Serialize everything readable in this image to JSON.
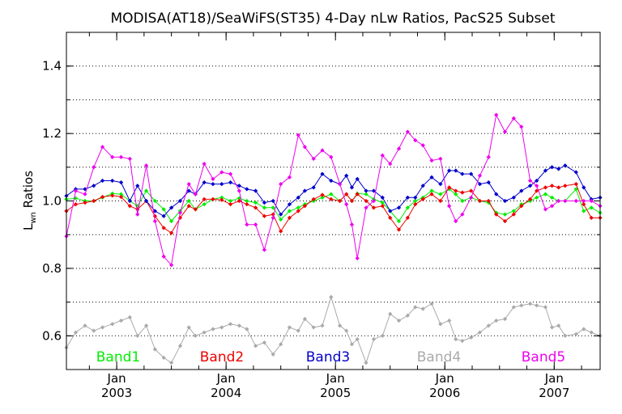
{
  "chart_data": {
    "type": "line",
    "title": "MODISA(AT18)/SeaWiFS(ST35) 4-Day nLw Ratios, PacS25 Subset",
    "ylabel": "L",
    "ylabel_sub": "wn",
    "ylabel_rest": " Ratios",
    "xlabel": "",
    "ylim": [
      0.5,
      1.5
    ],
    "xlim": [
      2002.54,
      2007.42
    ],
    "y_ticks": [
      {
        "value": 0.6,
        "label": "0.6"
      },
      {
        "value": 0.8,
        "label": "0.8"
      },
      {
        "value": 1.0,
        "label": "1.0"
      },
      {
        "value": 1.2,
        "label": "1.2"
      },
      {
        "value": 1.4,
        "label": "1.4"
      }
    ],
    "x_ticks": [
      {
        "value": 2003.0,
        "month": "Jan",
        "year": "2003"
      },
      {
        "value": 2004.0,
        "month": "Jan",
        "year": "2004"
      },
      {
        "value": 2005.0,
        "month": "Jan",
        "year": "2005"
      },
      {
        "value": 2006.0,
        "month": "Jan",
        "year": "2006"
      },
      {
        "value": 2007.0,
        "month": "Jan",
        "year": "2007"
      }
    ],
    "grid": "horizontal dotted",
    "x": [
      2002.54,
      2002.625,
      2002.71,
      2002.79,
      2002.87,
      2002.96,
      2003.04,
      2003.12,
      2003.19,
      2003.27,
      2003.35,
      2003.43,
      2003.5,
      2003.58,
      2003.66,
      2003.72,
      2003.8,
      2003.88,
      2003.96,
      2004.04,
      2004.12,
      2004.19,
      2004.27,
      2004.35,
      2004.43,
      2004.5,
      2004.58,
      2004.66,
      2004.72,
      2004.8,
      2004.88,
      2004.96,
      2005.04,
      2005.1,
      2005.15,
      2005.2,
      2005.28,
      2005.35,
      2005.43,
      2005.5,
      2005.58,
      2005.66,
      2005.73,
      2005.8,
      2005.88,
      2005.96,
      2006.04,
      2006.1,
      2006.16,
      2006.24,
      2006.32,
      2006.4,
      2006.47,
      2006.55,
      2006.63,
      2006.7,
      2006.78,
      2006.84,
      2006.92,
      2006.98,
      2007.04,
      2007.1,
      2007.2,
      2007.27,
      2007.34,
      2007.42
    ],
    "series": [
      {
        "name": "Band1",
        "color": "#00ee00",
        "values": [
          1.005,
          1.008,
          1.0,
          1.0,
          1.01,
          1.022,
          1.02,
          1.0,
          0.985,
          1.03,
          1.0,
          0.975,
          0.94,
          0.97,
          1.0,
          0.975,
          0.99,
          1.005,
          1.01,
          1.0,
          1.008,
          1.0,
          0.995,
          0.98,
          0.98,
          0.945,
          0.97,
          0.98,
          0.99,
          1.0,
          1.01,
          1.02,
          1.0,
          1.02,
          1.0,
          1.022,
          1.02,
          1.005,
          0.995,
          0.97,
          0.94,
          0.98,
          1.0,
          1.01,
          1.03,
          1.02,
          1.035,
          1.02,
          1.0,
          1.01,
          1.0,
          0.995,
          0.965,
          0.96,
          0.97,
          0.99,
          1.0,
          1.01,
          1.02,
          1.01,
          1.0,
          1.0,
          1.035,
          0.97,
          0.98,
          0.965
        ]
      },
      {
        "name": "Band2",
        "color": "#ee0000",
        "values": [
          0.97,
          0.99,
          0.995,
          1.0,
          1.012,
          1.016,
          1.012,
          0.985,
          0.975,
          1.0,
          0.955,
          0.92,
          0.905,
          0.95,
          0.985,
          0.975,
          1.005,
          1.005,
          1.003,
          0.99,
          1.0,
          0.99,
          0.98,
          0.955,
          0.96,
          0.91,
          0.95,
          0.97,
          0.985,
          1.005,
          1.018,
          1.005,
          1.0,
          1.02,
          1.0,
          1.02,
          1.0,
          0.98,
          0.985,
          0.95,
          0.915,
          0.95,
          0.99,
          1.005,
          1.02,
          1.0,
          1.04,
          1.03,
          1.025,
          1.03,
          1.0,
          1.0,
          0.96,
          0.94,
          0.96,
          0.985,
          1.005,
          1.03,
          1.04,
          1.045,
          1.04,
          1.045,
          1.05,
          0.99,
          0.95,
          0.95
        ]
      },
      {
        "name": "Band3",
        "color": "#0000cc",
        "values": [
          1.015,
          1.035,
          1.035,
          1.045,
          1.06,
          1.06,
          1.055,
          1.0,
          1.045,
          1.0,
          0.97,
          0.955,
          0.98,
          1.0,
          1.03,
          1.02,
          1.055,
          1.05,
          1.05,
          1.055,
          1.045,
          1.035,
          1.03,
          0.995,
          1.0,
          0.96,
          0.99,
          1.01,
          1.03,
          1.04,
          1.08,
          1.06,
          1.05,
          1.075,
          1.04,
          1.065,
          1.03,
          1.03,
          1.01,
          0.97,
          0.98,
          1.01,
          1.01,
          1.045,
          1.07,
          1.05,
          1.09,
          1.09,
          1.08,
          1.08,
          1.05,
          1.055,
          1.02,
          1.0,
          1.01,
          1.03,
          1.045,
          1.06,
          1.09,
          1.1,
          1.095,
          1.105,
          1.085,
          1.04,
          1.005,
          1.01
        ]
      },
      {
        "name": "Band4",
        "color": "#aaaaaa",
        "values": [
          0.565,
          0.61,
          0.63,
          0.615,
          0.625,
          0.635,
          0.645,
          0.655,
          0.6,
          0.63,
          0.56,
          0.535,
          0.52,
          0.57,
          0.625,
          0.6,
          0.61,
          0.62,
          0.625,
          0.635,
          0.63,
          0.62,
          0.57,
          0.58,
          0.545,
          0.575,
          0.625,
          0.615,
          0.65,
          0.625,
          0.63,
          0.715,
          0.63,
          0.615,
          0.575,
          0.59,
          0.52,
          0.59,
          0.6,
          0.665,
          0.645,
          0.66,
          0.685,
          0.68,
          0.695,
          0.635,
          0.645,
          0.59,
          0.585,
          0.595,
          0.61,
          0.63,
          0.645,
          0.65,
          0.685,
          0.69,
          0.695,
          0.69,
          0.685,
          0.625,
          0.63,
          0.6,
          0.605,
          0.62,
          0.61,
          0.6
        ]
      },
      {
        "name": "Band5",
        "color": "#ee00ee",
        "values": [
          0.895,
          1.03,
          1.02,
          1.1,
          1.16,
          1.13,
          1.13,
          1.125,
          0.96,
          1.105,
          0.94,
          0.835,
          0.81,
          0.965,
          1.05,
          1.02,
          1.11,
          1.065,
          1.085,
          1.08,
          1.03,
          0.93,
          0.93,
          0.855,
          0.95,
          1.05,
          1.07,
          1.195,
          1.16,
          1.125,
          1.15,
          1.13,
          1.05,
          0.99,
          0.93,
          0.83,
          0.98,
          1.0,
          1.135,
          1.11,
          1.155,
          1.205,
          1.18,
          1.165,
          1.12,
          1.125,
          0.985,
          0.94,
          0.96,
          1.01,
          1.075,
          1.13,
          1.255,
          1.205,
          1.245,
          1.22,
          1.06,
          1.045,
          0.975,
          0.985,
          1.0,
          1.0,
          1.0,
          1.0,
          1.0,
          0.985
        ]
      }
    ]
  }
}
